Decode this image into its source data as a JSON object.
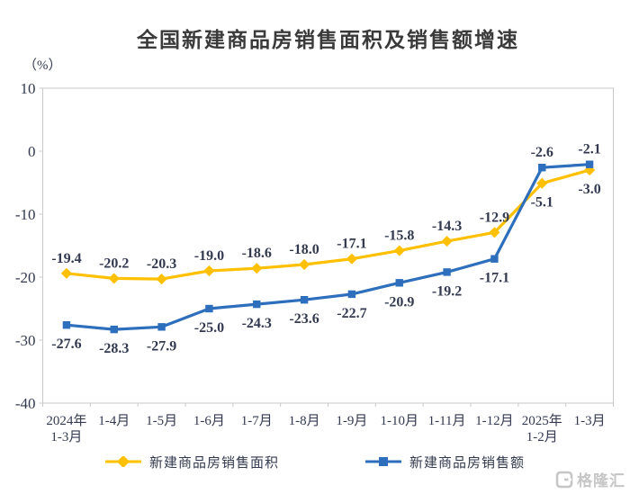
{
  "chart_data": {
    "type": "line",
    "title": "全国新建商品房销售面积及销售额增速",
    "unit_label": "（%）",
    "ylim": [
      -40,
      10
    ],
    "yticks": [
      10,
      0,
      -10,
      -20,
      -30,
      -40
    ],
    "grid": false,
    "legend_position": "bottom",
    "categories": [
      [
        "2024年",
        "1-3月"
      ],
      [
        "1-4月"
      ],
      [
        "1-5月"
      ],
      [
        "1-6月"
      ],
      [
        "1-7月"
      ],
      [
        "1-8月"
      ],
      [
        "1-9月"
      ],
      [
        "1-10月"
      ],
      [
        "1-11月"
      ],
      [
        "1-12月"
      ],
      [
        "2025年",
        "1-2月"
      ],
      [
        "1-3月"
      ]
    ],
    "series": [
      {
        "name": "新建商品房销售面积",
        "color": "#FFC000",
        "marker": "diamond",
        "values": [
          -19.4,
          -20.2,
          -20.3,
          -19.0,
          -18.6,
          -18.0,
          -17.1,
          -15.8,
          -14.3,
          -12.9,
          -5.1,
          -3.0
        ],
        "label_pos": [
          "above",
          "above",
          "above",
          "above",
          "above",
          "above",
          "above",
          "above",
          "above",
          "above",
          "below",
          "below"
        ]
      },
      {
        "name": "新建商品房销售额",
        "color": "#2D6FBC",
        "marker": "square",
        "values": [
          -27.6,
          -28.3,
          -27.9,
          -25.0,
          -24.3,
          -23.6,
          -22.7,
          -20.9,
          -19.2,
          -17.1,
          -2.6,
          -2.1
        ],
        "label_pos": [
          "below",
          "below",
          "below",
          "below",
          "below",
          "below",
          "below",
          "below",
          "below",
          "below",
          "above",
          "above"
        ]
      }
    ],
    "colors": {
      "axis": "#c9c9c9",
      "label": "#333a50",
      "title": "#3a3a3a"
    }
  },
  "watermark": {
    "logo": "G",
    "text": "格隆汇"
  }
}
